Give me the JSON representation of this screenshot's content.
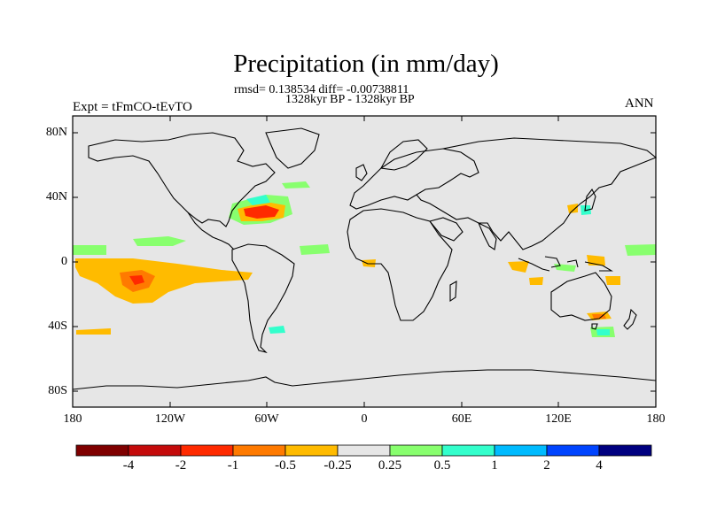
{
  "title": "Precipitation (in mm/day)",
  "stats": "rmsd= 0.138534 diff= -0.00738811",
  "period": "1328kyr BP - 1328kyr BP",
  "experiment": "Expt = tFmCO-tEvTO",
  "season": "ANN",
  "lat_labels": [
    "80N",
    "40N",
    "0",
    "40S",
    "80S"
  ],
  "lon_labels": [
    "180",
    "120W",
    "60W",
    "0",
    "60E",
    "120E",
    "180"
  ],
  "colorbar": {
    "labels": [
      "-4",
      "-2",
      "-1",
      "-0.5",
      "-0.25",
      "0.25",
      "0.5",
      "1",
      "2",
      "4"
    ],
    "colors": [
      "#7f0000",
      "#c40a0a",
      "#ff2a00",
      "#ff7a00",
      "#ffbb00",
      "#e6e6e6",
      "#88ff6e",
      "#33ffcc",
      "#00bbff",
      "#0044ff",
      "#000080"
    ]
  },
  "map": {
    "ocean_color": "#e6e6e6",
    "land_outline_color": "#000000"
  }
}
